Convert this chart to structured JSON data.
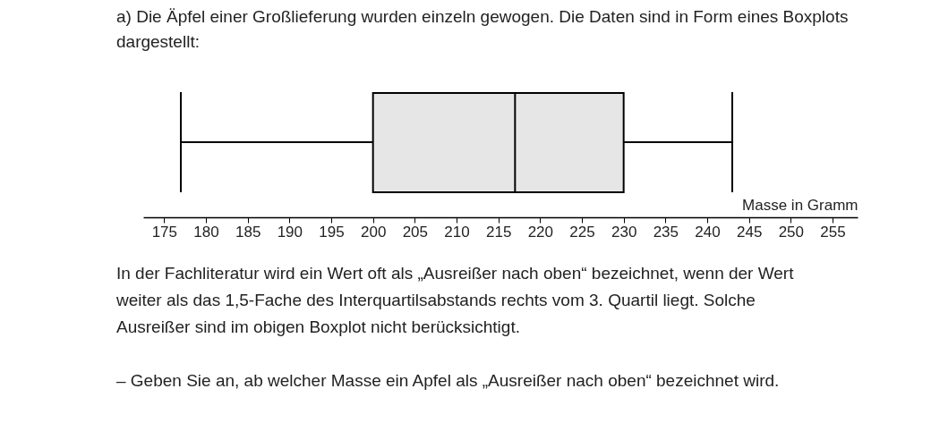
{
  "chart_data": {
    "type": "box",
    "title": "a) Die Äpfel einer Großlieferung wurden einzeln gewogen. Die Daten sind in Form eines Boxplots dargestellt:",
    "orientation": "horizontal",
    "categories": [
      null
    ],
    "boxes": [
      {
        "low": 177,
        "q1": 200,
        "median": 217,
        "q3": 230,
        "high": 243
      }
    ],
    "color": "#e6e6e6",
    "xlabel": "Masse in Gramm",
    "xlim": [
      172.5,
      258
    ],
    "xticks": [
      175,
      180,
      185,
      190,
      195,
      200,
      205,
      210,
      215,
      220,
      225,
      230,
      235,
      240,
      245,
      250,
      255
    ],
    "grid": false,
    "annotations": [
      "In der Fachliteratur wird ein Wert oft als „Ausreißer nach oben“ bezeichnet, wenn der Wert weiter als das 1,5-Fache des Interquartilsabstands rechts vom 3. Quartil liegt. Solche Ausreißer sind im obigen Boxplot nicht berücksichtigt.",
      "– Geben Sie an, ab welcher Masse ein Apfel als „Ausreißer nach oben“ bezeichnet wird."
    ]
  }
}
